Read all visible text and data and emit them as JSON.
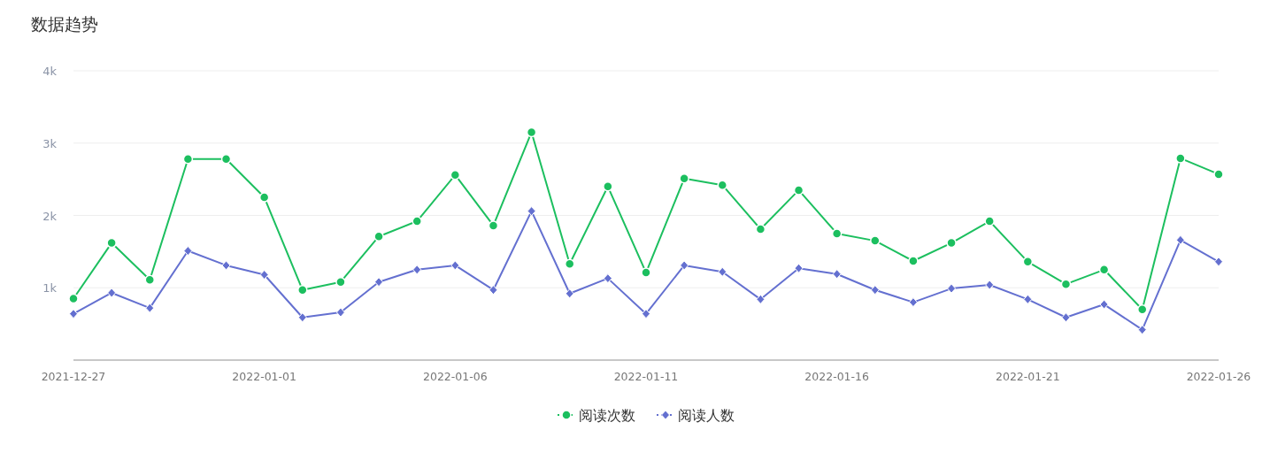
{
  "chart_data": {
    "type": "line",
    "title": "数据趋势",
    "x": [
      "2021-12-27",
      "2021-12-28",
      "2021-12-29",
      "2021-12-30",
      "2021-12-31",
      "2022-01-01",
      "2022-01-02",
      "2022-01-03",
      "2022-01-04",
      "2022-01-05",
      "2022-01-06",
      "2022-01-07",
      "2022-01-08",
      "2022-01-09",
      "2022-01-10",
      "2022-01-11",
      "2022-01-12",
      "2022-01-13",
      "2022-01-14",
      "2022-01-15",
      "2022-01-16",
      "2022-01-17",
      "2022-01-18",
      "2022-01-19",
      "2022-01-20",
      "2022-01-21",
      "2022-01-22",
      "2022-01-23",
      "2022-01-24",
      "2022-01-25",
      "2022-01-26"
    ],
    "xlim": [
      "2021-12-27",
      "2022-01-26"
    ],
    "xticks": [
      "2021-12-27",
      "2022-01-01",
      "2022-01-06",
      "2022-01-11",
      "2022-01-16",
      "2022-01-21",
      "2022-01-26"
    ],
    "ylim": [
      0,
      4000
    ],
    "yticks": [
      {
        "value": 1000,
        "label": "1k"
      },
      {
        "value": 2000,
        "label": "2k"
      },
      {
        "value": 3000,
        "label": "3k"
      },
      {
        "value": 4000,
        "label": "4k"
      }
    ],
    "grid": "y",
    "legend": "bottom",
    "series": [
      {
        "name": "阅读次数",
        "color": "#1cbf5f",
        "marker": "circle",
        "values": [
          850,
          1620,
          1110,
          2780,
          2780,
          2250,
          970,
          1080,
          1710,
          1920,
          2560,
          1860,
          3150,
          1330,
          2400,
          1210,
          2510,
          2420,
          1810,
          2350,
          1750,
          1650,
          1370,
          1620,
          1920,
          1360,
          1050,
          1250,
          700,
          2790,
          2570
        ]
      },
      {
        "name": "阅读人数",
        "color": "#6470d0",
        "marker": "diamond",
        "values": [
          640,
          930,
          720,
          1510,
          1310,
          1180,
          590,
          660,
          1080,
          1250,
          1310,
          970,
          2060,
          920,
          1130,
          640,
          1310,
          1220,
          840,
          1270,
          1190,
          970,
          800,
          990,
          1040,
          840,
          590,
          770,
          420,
          1660,
          1360
        ]
      }
    ]
  }
}
